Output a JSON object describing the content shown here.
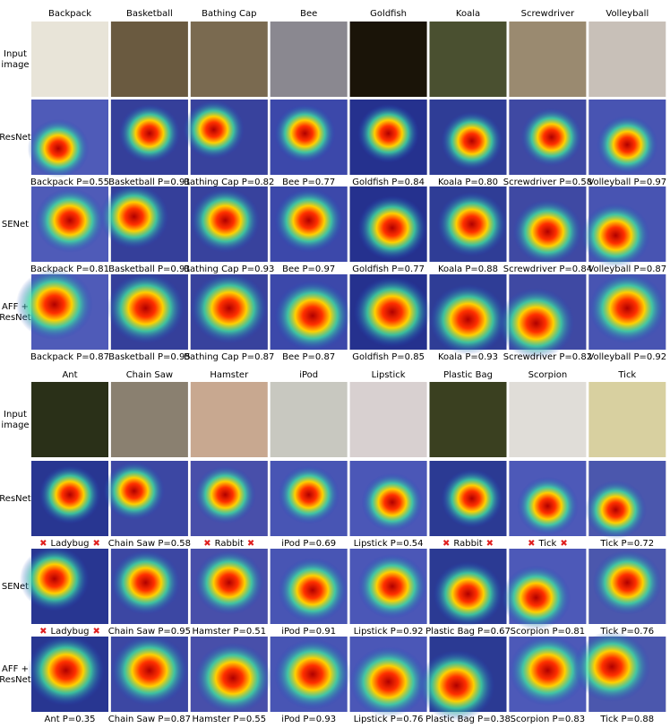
{
  "panels": [
    {
      "classes": [
        "Backpack",
        "Basketball",
        "Bathing Cap",
        "Bee",
        "Goldfish",
        "Koala",
        "Screwdriver",
        "Volleyball"
      ],
      "rows": [
        {
          "label": [
            "Input",
            "image"
          ]
        },
        {
          "label": [
            "ResNet"
          ],
          "captions": [
            "Backpack P=0.55",
            "Basketball P=0.91",
            "Bathing Cap P=0.82",
            "Bee P=0.77",
            "Goldfish P=0.84",
            "Koala P=0.80",
            "Screwdriver P=0.58",
            "Volleyball P=0.97"
          ]
        },
        {
          "label": [
            "SENet"
          ],
          "captions": [
            "Backpack P=0.81",
            "Basketball P=0.91",
            "Bathing Cap P=0.93",
            "Bee P=0.97",
            "Goldfish P=0.77",
            "Koala P=0.88",
            "Screwdriver P=0.84",
            "Volleyball P=0.87"
          ]
        },
        {
          "label": [
            "AFF +",
            "ResNet"
          ],
          "captions": [
            "Backpack P=0.87",
            "Basketball P=0.95",
            "Bathing Cap P=0.87",
            "Bee P=0.87",
            "Goldfish P=0.85",
            "Koala P=0.93",
            "Screwdriver P=0.82",
            "Volleyball P=0.92"
          ]
        }
      ]
    },
    {
      "classes": [
        "Ant",
        "Chain Saw",
        "Hamster",
        "iPod",
        "Lipstick",
        "Plastic Bag",
        "Scorpion",
        "Tick"
      ],
      "rows": [
        {
          "label": [
            "Input",
            "image"
          ]
        },
        {
          "label": [
            "ResNet"
          ],
          "captions": [
            {
              "text": "Ladybug",
              "marker": "✖"
            },
            "Chain Saw P=0.58",
            {
              "text": "Rabbit",
              "marker": "✖"
            },
            "iPod P=0.69",
            "Lipstick P=0.54",
            {
              "text": "Rabbit",
              "marker": "✖"
            },
            {
              "text": "Tick",
              "marker": "✖"
            },
            "Tick P=0.72"
          ]
        },
        {
          "label": [
            "SENet"
          ],
          "captions": [
            {
              "text": "Ladybug",
              "marker": "✖"
            },
            "Chain Saw P=0.95",
            "Hamster P=0.51",
            "iPod P=0.91",
            "Lipstick P=0.92",
            "Plastic Bag P=0.67",
            "Scorpion P=0.81",
            "Tick P=0.76"
          ]
        },
        {
          "label": [
            "AFF +",
            "ResNet"
          ],
          "captions": [
            "Ant P=0.35",
            "Chain Saw P=0.87",
            "Hamster P=0.55",
            "iPod P=0.93",
            "Lipstick P=0.76",
            "Plastic Bag P=0.38",
            "Scorpion P=0.83",
            "Tick P=0.88"
          ]
        }
      ]
    }
  ]
}
